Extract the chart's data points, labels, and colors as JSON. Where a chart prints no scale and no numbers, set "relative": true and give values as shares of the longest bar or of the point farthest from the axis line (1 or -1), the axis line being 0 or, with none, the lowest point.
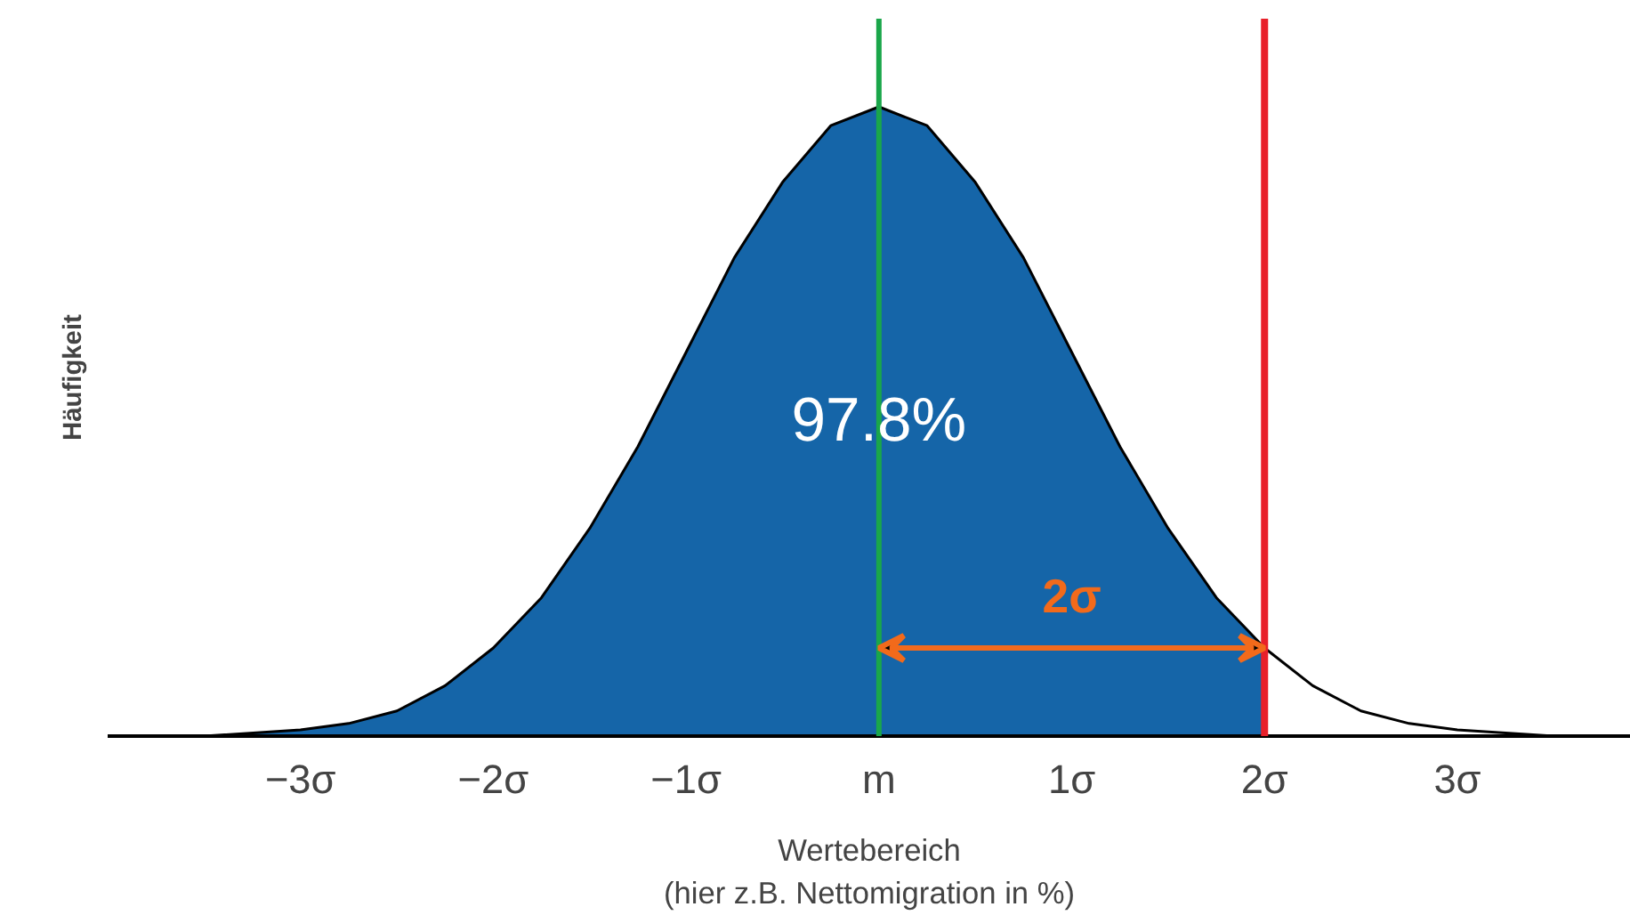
{
  "chart_data": {
    "type": "area",
    "relative": true,
    "xlabel": "Wertebereich\n(hier z.B. Nettomigration in %)",
    "ylabel": "Häufigkeit",
    "xlim": [
      -4,
      3.9
    ],
    "xticks": [
      {
        "value": -3,
        "label": "−3σ"
      },
      {
        "value": -2,
        "label": "−2σ"
      },
      {
        "value": -1,
        "label": "−1σ"
      },
      {
        "value": 0,
        "label": "m"
      },
      {
        "value": 1,
        "label": "1σ"
      },
      {
        "value": 2,
        "label": "2σ"
      },
      {
        "value": 3,
        "label": "3σ"
      }
    ],
    "series": [
      {
        "color": "#1565a8",
        "x": [
          -3.9,
          -3.5,
          -3,
          -2.75,
          -2.5,
          -2.25,
          -2,
          -1.75,
          -1.5,
          -1.25,
          -1,
          -0.75,
          -0.5,
          -0.25,
          0,
          0.25,
          0.5,
          0.75,
          1,
          1.25,
          1.5,
          1.75,
          2
        ],
        "values": [
          0.0,
          0.0,
          0.01,
          0.02,
          0.04,
          0.08,
          0.14,
          0.22,
          0.33,
          0.46,
          0.61,
          0.76,
          0.88,
          0.97,
          1.0,
          0.97,
          0.88,
          0.76,
          0.61,
          0.46,
          0.33,
          0.22,
          0.14
        ]
      },
      {
        "type": "line",
        "color": "#000000",
        "x": [
          -3.9,
          -3.5,
          -3,
          -2.75,
          -2.5,
          -2.25,
          -2,
          -1.75,
          -1.5,
          -1.25,
          -1,
          -0.75,
          -0.5,
          -0.25,
          0,
          0.25,
          0.5,
          0.75,
          1,
          1.25,
          1.5,
          1.75,
          2,
          2.25,
          2.5,
          2.75,
          3,
          3.5,
          3.9
        ],
        "values": [
          0.0,
          0.0,
          0.01,
          0.02,
          0.04,
          0.08,
          0.14,
          0.22,
          0.33,
          0.46,
          0.61,
          0.76,
          0.88,
          0.97,
          1.0,
          0.97,
          0.88,
          0.76,
          0.61,
          0.46,
          0.33,
          0.22,
          0.14,
          0.08,
          0.04,
          0.02,
          0.01,
          0.0,
          0.0
        ]
      }
    ],
    "ref_lines": [
      {
        "axis": "x",
        "value": 0,
        "color": "#1aa64a"
      },
      {
        "axis": "x",
        "value": 2,
        "color": "#e8202a"
      }
    ],
    "annotations": [
      "97.8%",
      "2σ"
    ],
    "grid": false
  }
}
